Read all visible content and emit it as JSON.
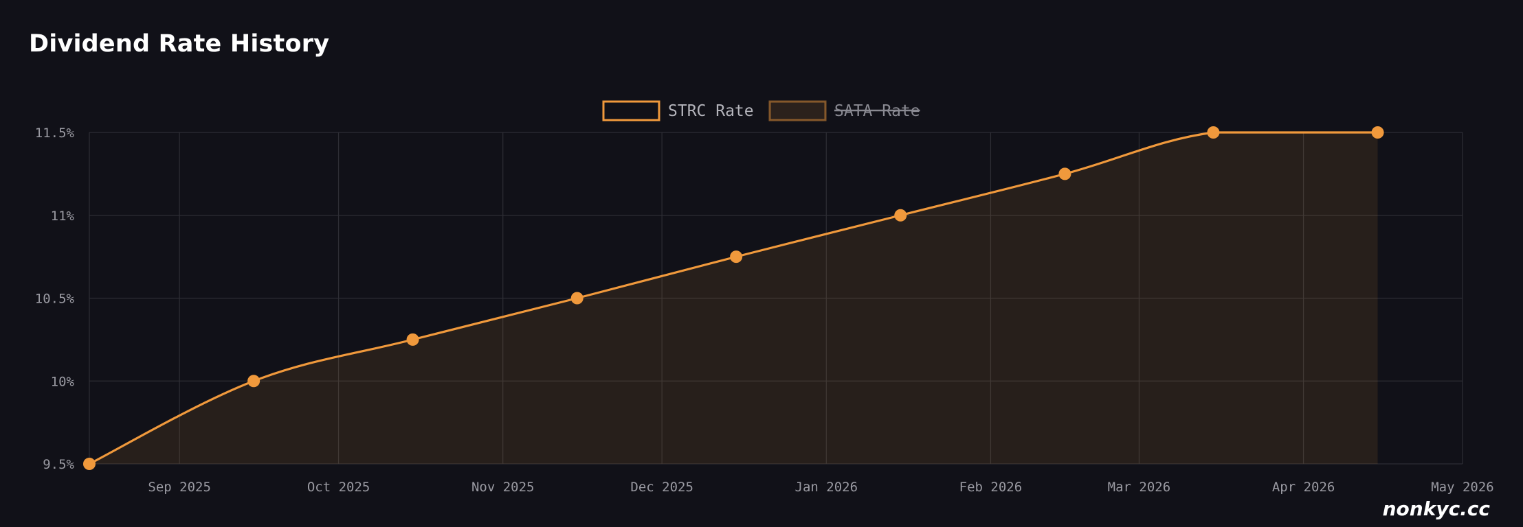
{
  "page": {
    "title": "Dividend Rate History",
    "watermark": "nonkyc.cc"
  },
  "colors": {
    "background": "#111118",
    "grid": "#2e2e35",
    "tick_text": "#9a9aa2",
    "series_line": "#f0993c",
    "series_fill": "#2a211c"
  },
  "chart_data": {
    "type": "line",
    "title": "",
    "xlabel": "",
    "ylabel": "",
    "x_type": "date",
    "x_range": [
      "2025-08-15",
      "2026-05-01"
    ],
    "xticks": [
      {
        "date": "2025-09-01",
        "label": "Sep 2025"
      },
      {
        "date": "2025-10-01",
        "label": "Oct 2025"
      },
      {
        "date": "2025-11-01",
        "label": "Nov 2025"
      },
      {
        "date": "2025-12-01",
        "label": "Dec 2025"
      },
      {
        "date": "2026-01-01",
        "label": "Jan 2026"
      },
      {
        "date": "2026-02-01",
        "label": "Feb 2026"
      },
      {
        "date": "2026-03-01",
        "label": "Mar 2026"
      },
      {
        "date": "2026-04-01",
        "label": "Apr 2026"
      },
      {
        "date": "2026-05-01",
        "label": "May 2026"
      }
    ],
    "ylim": [
      9.5,
      11.5
    ],
    "yticks": [
      {
        "value": 9.5,
        "label": "9.5%"
      },
      {
        "value": 10,
        "label": "10%"
      },
      {
        "value": 10.5,
        "label": "10.5%"
      },
      {
        "value": 11,
        "label": "11%"
      },
      {
        "value": 11.5,
        "label": "11.5%"
      }
    ],
    "grid": true,
    "legend_position": "top-center",
    "series": [
      {
        "name": "STRC Rate",
        "hidden": false,
        "color": "#f0993c",
        "points": [
          {
            "x": "2025-08-15",
            "y": 9.5
          },
          {
            "x": "2025-09-15",
            "y": 10
          },
          {
            "x": "2025-10-15",
            "y": 10.25
          },
          {
            "x": "2025-11-15",
            "y": 10.5
          },
          {
            "x": "2025-12-15",
            "y": 10.75
          },
          {
            "x": "2026-01-15",
            "y": 11
          },
          {
            "x": "2026-02-15",
            "y": 11.25
          },
          {
            "x": "2026-03-15",
            "y": 11.5
          },
          {
            "x": "2026-04-15",
            "y": 11.5
          }
        ]
      },
      {
        "name": "SATA Rate",
        "hidden": true,
        "color": "#f0993c",
        "points": []
      }
    ]
  }
}
